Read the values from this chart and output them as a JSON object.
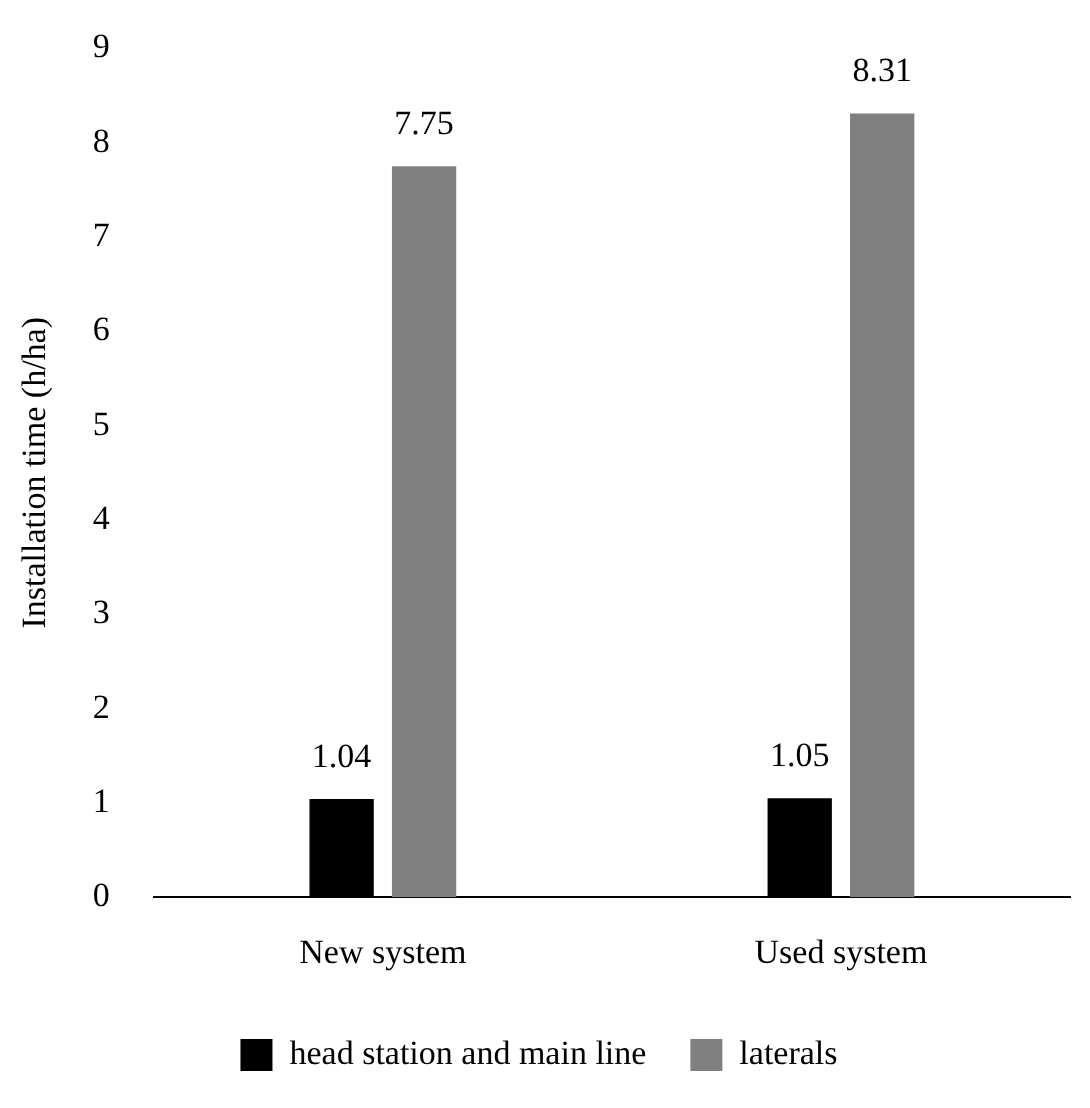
{
  "chart_data": {
    "type": "bar",
    "ylabel": "Installation time (h/ha)",
    "categories": [
      "New system",
      "Used system"
    ],
    "series": [
      {
        "name": "head station and main line",
        "color": "#000000",
        "values": [
          1.04,
          1.05
        ]
      },
      {
        "name": "laterals",
        "color": "#808080",
        "values": [
          7.75,
          8.31
        ]
      }
    ],
    "ylim": [
      0,
      9
    ],
    "yticks": [
      0,
      1,
      2,
      3,
      4,
      5,
      6,
      7,
      8,
      9
    ],
    "grid": false,
    "legend": "bottom",
    "data_labels": true
  }
}
